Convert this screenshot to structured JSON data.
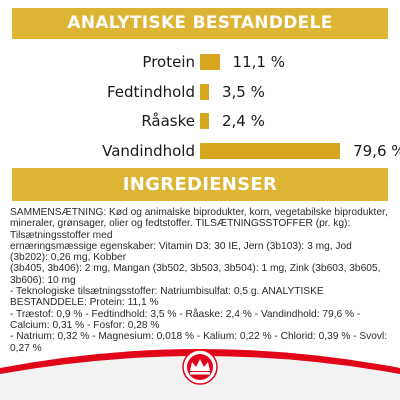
{
  "headers": {
    "analysis": "ANALYTISKE BESTANDDELE",
    "ingredients": "INGREDIENSER"
  },
  "nutrients": [
    {
      "label": "Protein",
      "value_text": "11,1 %",
      "value": 11.1
    },
    {
      "label": "Fedtindhold",
      "value_text": "3,5 %",
      "value": 3.5
    },
    {
      "label": "Råaske",
      "value_text": "2,4 %",
      "value": 2.4
    },
    {
      "label": "Vandindhold",
      "value_text": "79,6 %",
      "value": 79.6
    }
  ],
  "ingredients_lines": [
    "SAMMENSÆTNING: Kød og animalske biprodukter, korn, vegetabilske biprodukter,",
    "mineraler, grønsager, olier og fedtstoffer. TILSÆTNINGSSTOFFER (pr. kg): Tilsætningsstoffer med",
    "ernæringsmæssige egenskaber: Vitamin D3: 30 IE, Jern (3b103): 3 mg, Jod (3b202): 0,26 mg, Kobber",
    "(3b405, 3b406): 2 mg, Mangan (3b502, 3b503, 3b504): 1 mg, Zink (3b603, 3b605, 3b606): 10 mg",
    "- Teknologiske tilsætningsstoffer: Natriumbisulfat: 0,5 g. ANALYTISKE BESTANDDELE: Protein: 11,1 %",
    "- Træstof: 0,9 % - Fedtindhold: 3,5 % - Råaske: 2,4 % - Vandindhold: 79,6 % - Calcium: 0,31 % - Fosfor: 0,28 %",
    "- Natrium: 0,32 % - Magnesium: 0,018 % - Kalium: 0,22 % - Chlorid: 0,39 % - Svovl: 0,27 %"
  ],
  "colors": {
    "banner": "#ddb433",
    "bar": "#d8a51f",
    "brand_red": "#e1051a"
  },
  "logo": {
    "icon": "royal-canin-crown-icon"
  }
}
